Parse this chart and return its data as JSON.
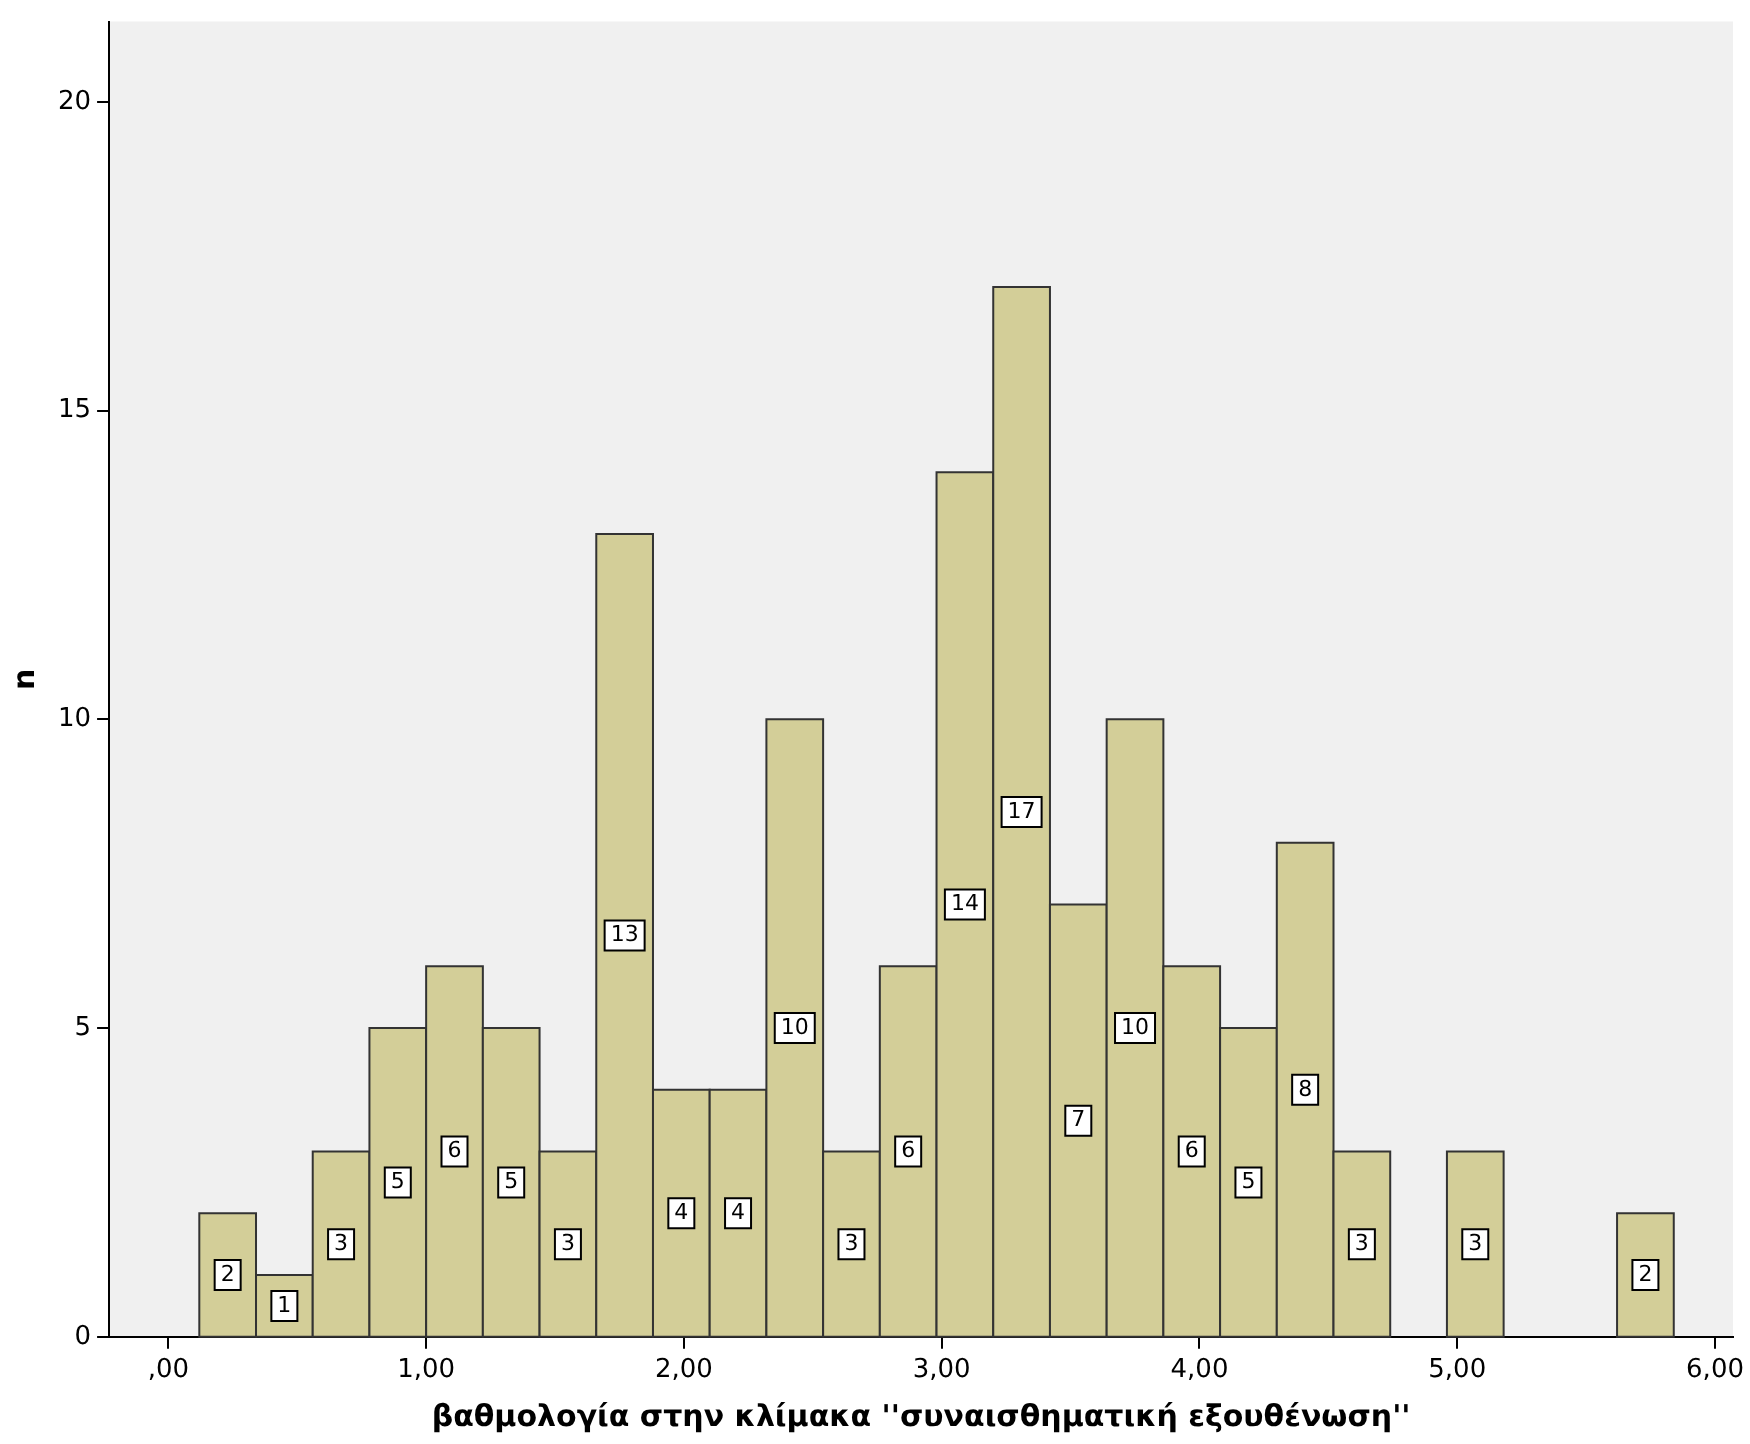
{
  "chart_data": {
    "type": "histogram",
    "xlabel": "βαθμολογία στην κλίμακα ''συναισθηματική εξουθένωση''",
    "ylabel": "n",
    "bins": [
      0.12,
      0.34,
      0.56,
      0.78,
      1.0,
      1.22,
      1.44,
      1.66,
      1.88,
      2.1,
      2.32,
      2.54,
      2.76,
      2.98,
      3.2,
      3.42,
      3.64,
      3.86,
      4.08,
      4.3,
      4.52,
      4.74,
      4.96,
      5.18,
      5.4,
      5.62,
      5.84
    ],
    "values": [
      2,
      1,
      3,
      5,
      6,
      5,
      3,
      13,
      4,
      4,
      10,
      3,
      6,
      14,
      17,
      7,
      10,
      6,
      5,
      8,
      3,
      0,
      3,
      0,
      0,
      2
    ],
    "value_labels": [
      "2",
      "1",
      "3",
      "5",
      "6",
      "5",
      "3",
      "13",
      "4",
      "4",
      "10",
      "3",
      "6",
      "14",
      "17",
      "7",
      "10",
      "6",
      "5",
      "8",
      "3",
      null,
      "3",
      null,
      null,
      "2"
    ],
    "color": "#d3ce98",
    "xlim": [
      -0.23,
      6.07
    ],
    "xticks": [
      {
        "value": 0,
        "label": ",00"
      },
      {
        "value": 1,
        "label": "1,00"
      },
      {
        "value": 2,
        "label": "2,00"
      },
      {
        "value": 3,
        "label": "3,00"
      },
      {
        "value": 4,
        "label": "4,00"
      },
      {
        "value": 5,
        "label": "5,00"
      },
      {
        "value": 6,
        "label": "6,00"
      }
    ],
    "ylim": [
      0,
      21.3
    ],
    "yticks": [
      0,
      5,
      10,
      15,
      20
    ]
  }
}
